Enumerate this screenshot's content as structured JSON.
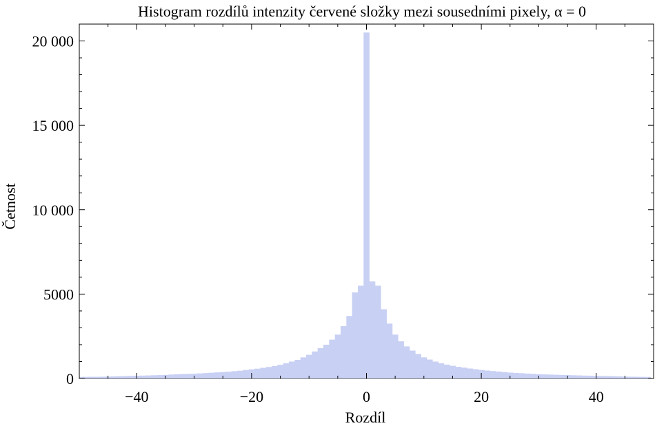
{
  "chart_data": {
    "type": "bar",
    "title": "Histogram rozdílů intenzity červené složky mezi sousedními pixely, α = 0",
    "xlabel": "Rozdíl",
    "ylabel": "Četnost",
    "xlim": [
      -50,
      50
    ],
    "ylim": [
      0,
      21000
    ],
    "bar_color": "#c8d0f4",
    "xticks": [
      -40,
      -20,
      0,
      20,
      40
    ],
    "xtick_labels": [
      "−40",
      "−20",
      "0",
      "20",
      "40"
    ],
    "yticks": [
      0,
      5000,
      10000,
      15000,
      20000
    ],
    "ytick_labels": [
      "0",
      "5000",
      "10 000",
      "15 000",
      "20 000"
    ],
    "bins": [
      {
        "x": -50,
        "value": 90
      },
      {
        "x": -49,
        "value": 95
      },
      {
        "x": -48,
        "value": 100
      },
      {
        "x": -47,
        "value": 100
      },
      {
        "x": -46,
        "value": 105
      },
      {
        "x": -45,
        "value": 110
      },
      {
        "x": -44,
        "value": 120
      },
      {
        "x": -43,
        "value": 130
      },
      {
        "x": -42,
        "value": 140
      },
      {
        "x": -41,
        "value": 150
      },
      {
        "x": -40,
        "value": 160
      },
      {
        "x": -39,
        "value": 170
      },
      {
        "x": -38,
        "value": 180
      },
      {
        "x": -37,
        "value": 190
      },
      {
        "x": -36,
        "value": 200
      },
      {
        "x": -35,
        "value": 210
      },
      {
        "x": -34,
        "value": 230
      },
      {
        "x": -33,
        "value": 250
      },
      {
        "x": -32,
        "value": 260
      },
      {
        "x": -31,
        "value": 270
      },
      {
        "x": -30,
        "value": 280
      },
      {
        "x": -29,
        "value": 300
      },
      {
        "x": -28,
        "value": 320
      },
      {
        "x": -27,
        "value": 340
      },
      {
        "x": -26,
        "value": 360
      },
      {
        "x": -25,
        "value": 380
      },
      {
        "x": -24,
        "value": 400
      },
      {
        "x": -23,
        "value": 430
      },
      {
        "x": -22,
        "value": 460
      },
      {
        "x": -21,
        "value": 500
      },
      {
        "x": -20,
        "value": 540
      },
      {
        "x": -19,
        "value": 580
      },
      {
        "x": -18,
        "value": 630
      },
      {
        "x": -17,
        "value": 680
      },
      {
        "x": -16,
        "value": 740
      },
      {
        "x": -15,
        "value": 810
      },
      {
        "x": -14,
        "value": 900
      },
      {
        "x": -13,
        "value": 1000
      },
      {
        "x": -12,
        "value": 1100
      },
      {
        "x": -11,
        "value": 1250
      },
      {
        "x": -10,
        "value": 1400
      },
      {
        "x": -9,
        "value": 1600
      },
      {
        "x": -8,
        "value": 1800
      },
      {
        "x": -7,
        "value": 2000
      },
      {
        "x": -6,
        "value": 2300
      },
      {
        "x": -5,
        "value": 2600
      },
      {
        "x": -4,
        "value": 3100
      },
      {
        "x": -3,
        "value": 3700
      },
      {
        "x": -2,
        "value": 5100
      },
      {
        "x": -1,
        "value": 5500
      },
      {
        "x": 0,
        "value": 20500
      },
      {
        "x": 1,
        "value": 5750
      },
      {
        "x": 2,
        "value": 5500
      },
      {
        "x": 3,
        "value": 4100
      },
      {
        "x": 4,
        "value": 3250
      },
      {
        "x": 5,
        "value": 2600
      },
      {
        "x": 6,
        "value": 2200
      },
      {
        "x": 7,
        "value": 1900
      },
      {
        "x": 8,
        "value": 1650
      },
      {
        "x": 9,
        "value": 1450
      },
      {
        "x": 10,
        "value": 1250
      },
      {
        "x": 11,
        "value": 1120
      },
      {
        "x": 12,
        "value": 1000
      },
      {
        "x": 13,
        "value": 900
      },
      {
        "x": 14,
        "value": 820
      },
      {
        "x": 15,
        "value": 750
      },
      {
        "x": 16,
        "value": 690
      },
      {
        "x": 17,
        "value": 640
      },
      {
        "x": 18,
        "value": 590
      },
      {
        "x": 19,
        "value": 550
      },
      {
        "x": 20,
        "value": 500
      },
      {
        "x": 21,
        "value": 470
      },
      {
        "x": 22,
        "value": 440
      },
      {
        "x": 23,
        "value": 410
      },
      {
        "x": 24,
        "value": 380
      },
      {
        "x": 25,
        "value": 350
      },
      {
        "x": 26,
        "value": 330
      },
      {
        "x": 27,
        "value": 310
      },
      {
        "x": 28,
        "value": 290
      },
      {
        "x": 29,
        "value": 270
      },
      {
        "x": 30,
        "value": 250
      },
      {
        "x": 31,
        "value": 240
      },
      {
        "x": 32,
        "value": 230
      },
      {
        "x": 33,
        "value": 220
      },
      {
        "x": 34,
        "value": 210
      },
      {
        "x": 35,
        "value": 200
      },
      {
        "x": 36,
        "value": 190
      },
      {
        "x": 37,
        "value": 180
      },
      {
        "x": 38,
        "value": 170
      },
      {
        "x": 39,
        "value": 160
      },
      {
        "x": 40,
        "value": 150
      },
      {
        "x": 41,
        "value": 145
      },
      {
        "x": 42,
        "value": 140
      },
      {
        "x": 43,
        "value": 130
      },
      {
        "x": 44,
        "value": 120
      },
      {
        "x": 45,
        "value": 110
      },
      {
        "x": 46,
        "value": 105
      },
      {
        "x": 47,
        "value": 100
      },
      {
        "x": 48,
        "value": 95
      },
      {
        "x": 49,
        "value": 90
      }
    ]
  }
}
